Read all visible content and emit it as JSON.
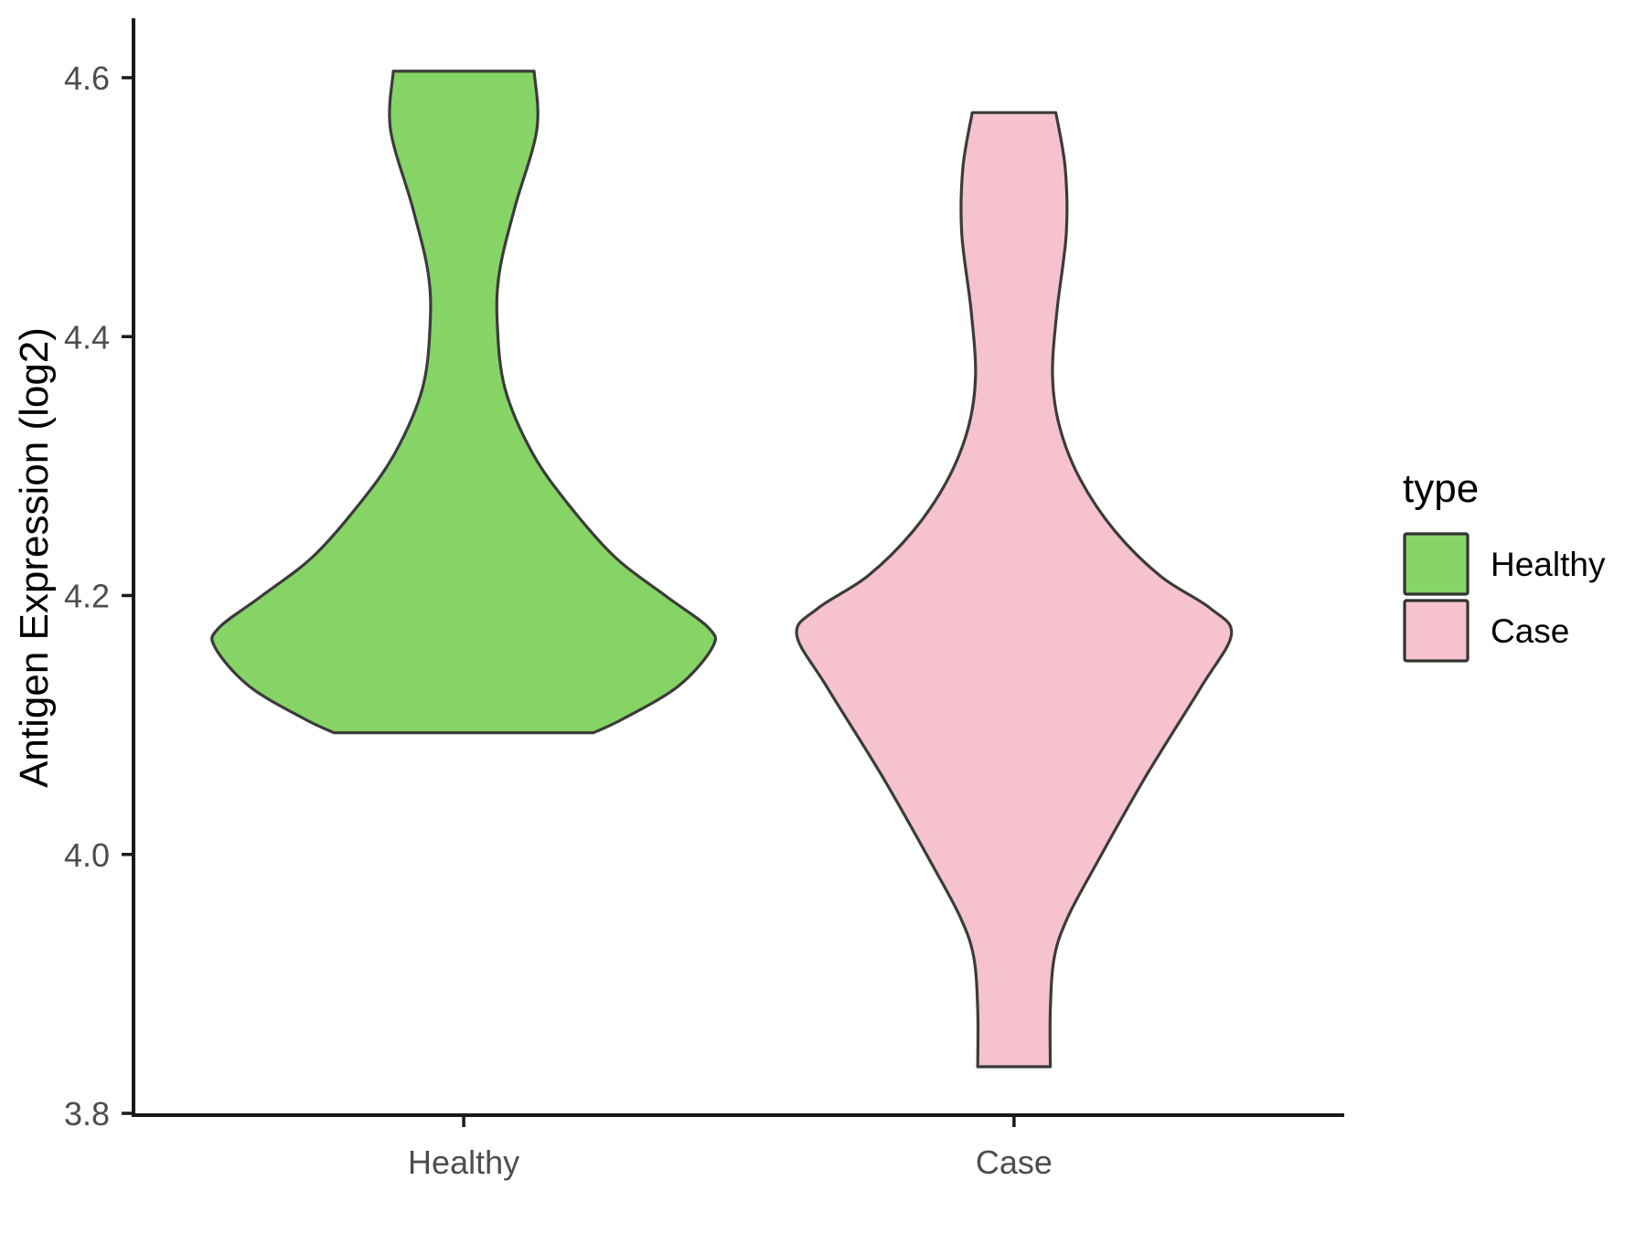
{
  "chart_data": {
    "type": "violin",
    "title": "",
    "xlabel": "",
    "ylabel": "Antigen Expression (log2)",
    "x_categories": [
      "Healthy",
      "Case"
    ],
    "y_ticks": [
      4.6,
      4.4,
      4.2,
      4.0,
      3.8
    ],
    "y_tick_labels": [
      "4.6",
      "4.4",
      "4.2",
      "4.0",
      "3.8"
    ],
    "ylim": [
      3.75,
      4.65
    ],
    "grid": "off",
    "legend": {
      "title": "type",
      "position": "right",
      "entries": [
        {
          "label": "Healthy",
          "color": "#86D465"
        },
        {
          "label": "Case",
          "color": "#F6C2CD"
        }
      ]
    },
    "series": [
      {
        "name": "Healthy",
        "x": 1,
        "fill": "#86D465",
        "outline": "#3B3B3B",
        "min": 4.09,
        "max": 4.6,
        "widest_at": 4.17,
        "profile": [
          [
            4.605,
            0.128
          ],
          [
            4.56,
            0.133
          ],
          [
            4.5,
            0.093
          ],
          [
            4.45,
            0.065
          ],
          [
            4.41,
            0.061
          ],
          [
            4.36,
            0.075
          ],
          [
            4.31,
            0.125
          ],
          [
            4.27,
            0.191
          ],
          [
            4.23,
            0.274
          ],
          [
            4.2,
            0.366
          ],
          [
            4.175,
            0.445
          ],
          [
            4.16,
            0.452
          ],
          [
            4.13,
            0.39
          ],
          [
            4.105,
            0.291
          ],
          [
            4.094,
            0.236
          ]
        ]
      },
      {
        "name": "Case",
        "x": 2,
        "fill": "#F6C2CD",
        "outline": "#3B3B3B",
        "min": 3.84,
        "max": 4.57,
        "widest_at": 4.17,
        "profile": [
          [
            4.573,
            0.076
          ],
          [
            4.53,
            0.093
          ],
          [
            4.48,
            0.095
          ],
          [
            4.42,
            0.078
          ],
          [
            4.37,
            0.07
          ],
          [
            4.33,
            0.083
          ],
          [
            4.29,
            0.12
          ],
          [
            4.25,
            0.183
          ],
          [
            4.215,
            0.266
          ],
          [
            4.19,
            0.357
          ],
          [
            4.17,
            0.395
          ],
          [
            4.13,
            0.341
          ],
          [
            4.06,
            0.239
          ],
          [
            3.99,
            0.146
          ],
          [
            3.95,
            0.096
          ],
          [
            3.92,
            0.073
          ],
          [
            3.88,
            0.066
          ],
          [
            3.836,
            0.066
          ]
        ]
      }
    ]
  },
  "styles": {
    "axis_color": "#1A1A1A",
    "tick_label_color": "#4D4D4D",
    "title_color": "#000000",
    "violin_outline": "#3B3B3B",
    "background": "#FFFFFF"
  }
}
